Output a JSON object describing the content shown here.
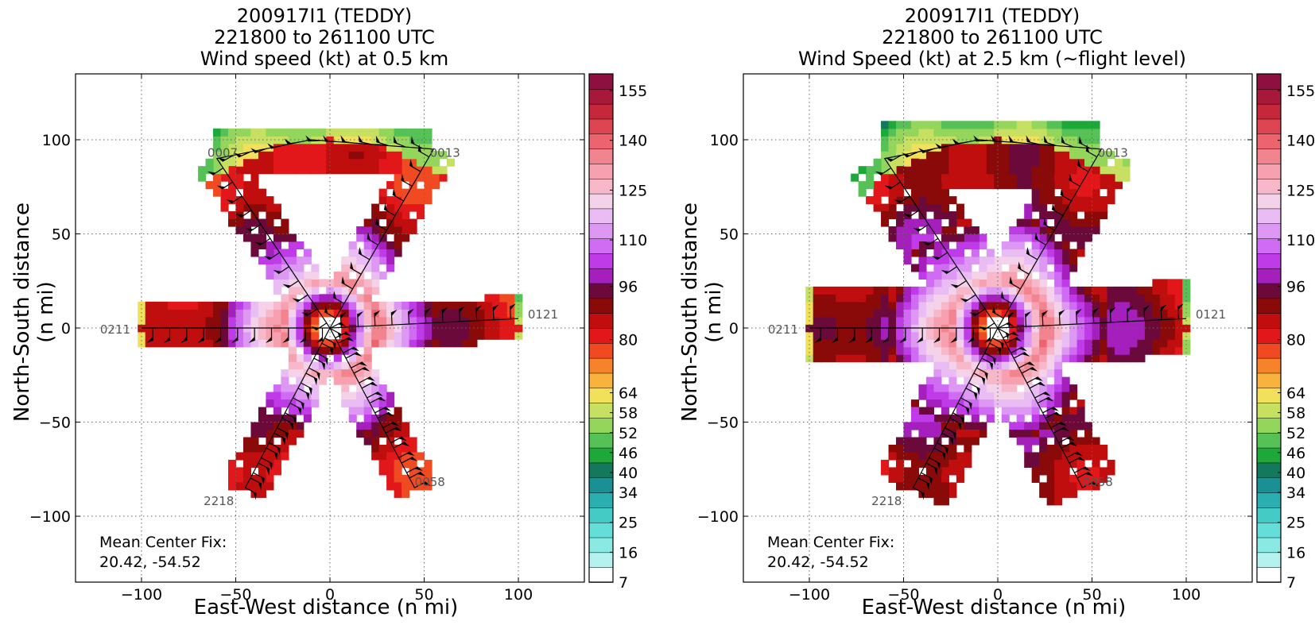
{
  "colorbar": {
    "tick_labels": [
      "155",
      "140",
      "125",
      "110",
      "96",
      "80",
      "64",
      "58",
      "52",
      "46",
      "40",
      "34",
      "25",
      "16",
      "7"
    ],
    "tick_values": [
      155,
      140,
      125,
      110,
      96,
      80,
      64,
      58,
      52,
      46,
      40,
      34,
      25,
      16,
      7
    ],
    "colors": [
      "#ffffff",
      "#b3f2ef",
      "#8be9e4",
      "#63ded8",
      "#44cbc6",
      "#2aaeb0",
      "#1b9094",
      "#14785c",
      "#1fa83a",
      "#56c156",
      "#93d65b",
      "#c7e062",
      "#f1e05a",
      "#f9b23c",
      "#f6822b",
      "#f04a22",
      "#e2171a",
      "#c00e0e",
      "#8a0a0a",
      "#6b0a3a",
      "#a51fbd",
      "#bf3be8",
      "#cf6cf3",
      "#dd98f4",
      "#e9bcf3",
      "#f4d2ea",
      "#f7b9c9",
      "#f6a0b0",
      "#f2848f",
      "#ec646d",
      "#dd4550",
      "#c6283b",
      "#a8183a",
      "#8e1040"
    ]
  },
  "chart_data": [
    {
      "type": "heatmap",
      "title": "200917I1 (TEDDY)",
      "subtitle": "221800 to 261100 UTC",
      "variable": "Wind speed (kt) at 0.5 km",
      "xlabel": "East-West distance (n mi)",
      "ylabel": "North-South distance (n mi)",
      "xlim": [
        -135,
        135
      ],
      "ylim": [
        -135,
        135
      ],
      "xticks": [
        -100,
        -50,
        0,
        50,
        100
      ],
      "yticks": [
        -100,
        -50,
        0,
        50,
        100
      ],
      "xtick_labels": [
        "−100",
        "−50",
        "0",
        "50",
        "100"
      ],
      "ytick_labels": [
        "−100",
        "−50",
        "0",
        "50",
        "100"
      ],
      "grid": true,
      "colorbar_range": [
        7,
        160
      ],
      "flight_track": [
        [
          -100,
          0
        ],
        [
          0,
          0
        ],
        [
          55,
          95
        ],
        [
          -10,
          100
        ],
        [
          -60,
          90
        ],
        [
          0,
          0
        ],
        [
          -45,
          -85
        ],
        [
          0,
          0
        ],
        [
          45,
          -85
        ],
        [
          0,
          0
        ],
        [
          100,
          5
        ]
      ],
      "track_labels": [
        {
          "text": "0211",
          "x": -122,
          "y": -3
        },
        {
          "text": "0007",
          "x": -65,
          "y": 91
        },
        {
          "text": "0013",
          "x": 53,
          "y": 91
        },
        {
          "text": "0121",
          "x": 105,
          "y": 5
        },
        {
          "text": "2218",
          "x": -67,
          "y": -94
        },
        {
          "text": "0058",
          "x": 45,
          "y": -84
        }
      ],
      "annotation": [
        "Mean Center Fix:",
        "20.42, -54.52"
      ]
    },
    {
      "type": "heatmap",
      "title": "200917I1 (TEDDY)",
      "subtitle": "221800 to 261100 UTC",
      "variable": "Wind Speed (kt) at 2.5 km (~flight level)",
      "xlabel": "East-West distance (n mi)",
      "ylabel": "North-South distance (n mi)",
      "xlim": [
        -135,
        135
      ],
      "ylim": [
        -135,
        135
      ],
      "xticks": [
        -100,
        -50,
        0,
        50,
        100
      ],
      "yticks": [
        -100,
        -50,
        0,
        50,
        100
      ],
      "xtick_labels": [
        "−100",
        "−50",
        "0",
        "50",
        "100"
      ],
      "ytick_labels": [
        "−100",
        "−50",
        "0",
        "50",
        "100"
      ],
      "grid": true,
      "colorbar_range": [
        7,
        160
      ],
      "flight_track": [
        [
          -100,
          0
        ],
        [
          0,
          0
        ],
        [
          55,
          95
        ],
        [
          -10,
          100
        ],
        [
          -60,
          90
        ],
        [
          0,
          0
        ],
        [
          -45,
          -85
        ],
        [
          0,
          0
        ],
        [
          45,
          -85
        ],
        [
          0,
          0
        ],
        [
          100,
          5
        ]
      ],
      "track_labels": [
        {
          "text": "0211",
          "x": -122,
          "y": -3
        },
        {
          "text": "0013",
          "x": 53,
          "y": 91
        },
        {
          "text": "0121",
          "x": 105,
          "y": 5
        },
        {
          "text": "2218",
          "x": -67,
          "y": -94
        },
        {
          "text": "0058",
          "x": 45,
          "y": -84
        }
      ],
      "annotation": [
        "Mean Center Fix:",
        "20.42, -54.52"
      ]
    }
  ]
}
